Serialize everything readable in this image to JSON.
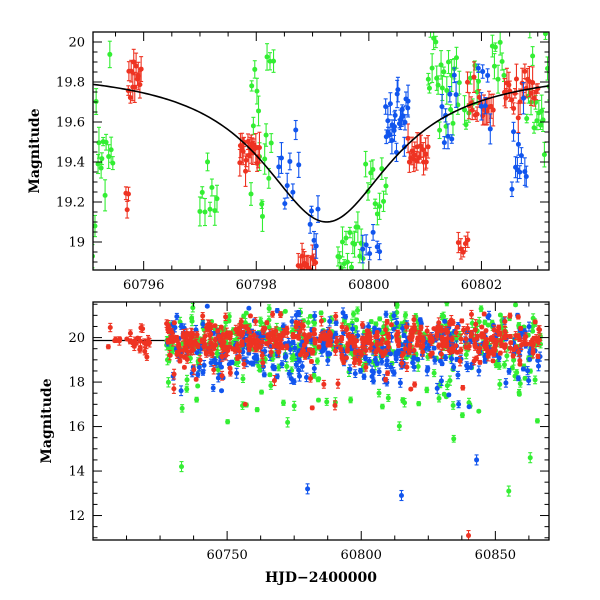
{
  "chart_data": [
    {
      "type": "scatter",
      "panel": "top",
      "title": "",
      "xlabel": "",
      "ylabel": "Magnitude",
      "xlim": [
        60795.1,
        60803.2
      ],
      "ylim": [
        20.05,
        18.86
      ],
      "y_inverted": true,
      "x_ticks": [
        60796,
        60798,
        60800,
        60802
      ],
      "y_ticks": [
        19,
        19.2,
        19.4,
        19.6,
        19.8,
        20
      ],
      "x_tick_labels": [
        "60796",
        "60798",
        "60800",
        "60802"
      ],
      "y_tick_labels": [
        "19",
        "19.2",
        "19.4",
        "19.6",
        "19.8",
        "20"
      ],
      "grid": false,
      "legend": "none",
      "model_curve": {
        "peak_x": 60799.25,
        "peak_mag": 19.1,
        "baseline_mag": 19.87,
        "width_days": 1.6,
        "color": "#000000"
      },
      "series": [
        {
          "color": "#33ee33",
          "segments": [
            {
              "x0": 60795.1,
              "x1": 60795.45,
              "mag_center": 19.55,
              "spread": 0.45,
              "n": 14
            },
            {
              "x0": 60797.0,
              "x1": 60797.3,
              "mag_center": 19.25,
              "spread": 0.22,
              "n": 8
            },
            {
              "x0": 60797.9,
              "x1": 60798.3,
              "mag_center": 19.6,
              "spread": 0.45,
              "n": 16
            },
            {
              "x0": 60799.45,
              "x1": 60799.9,
              "mag_center": 19.0,
              "spread": 0.16,
              "n": 16
            },
            {
              "x0": 60799.95,
              "x1": 60800.3,
              "mag_center": 19.3,
              "spread": 0.16,
              "n": 10
            },
            {
              "x0": 60801.05,
              "x1": 60801.6,
              "mag_center": 19.85,
              "spread": 0.25,
              "n": 22
            },
            {
              "x0": 60801.7,
              "x1": 60801.95,
              "mag_center": 19.75,
              "spread": 0.3,
              "n": 8
            },
            {
              "x0": 60802.15,
              "x1": 60802.4,
              "mag_center": 19.9,
              "spread": 0.15,
              "n": 8
            },
            {
              "x0": 60802.8,
              "x1": 60803.2,
              "mag_center": 19.65,
              "spread": 0.35,
              "n": 16
            }
          ]
        },
        {
          "color": "#ee3322",
          "segments": [
            {
              "x0": 60795.68,
              "x1": 60795.72,
              "mag_center": 19.2,
              "spread": 0.05,
              "n": 3
            },
            {
              "x0": 60795.72,
              "x1": 60795.95,
              "mag_center": 19.78,
              "spread": 0.12,
              "n": 12
            },
            {
              "x0": 60797.7,
              "x1": 60798.05,
              "mag_center": 19.45,
              "spread": 0.1,
              "n": 18
            },
            {
              "x0": 60798.75,
              "x1": 60799.05,
              "mag_center": 18.9,
              "spread": 0.04,
              "n": 12
            },
            {
              "x0": 60800.7,
              "x1": 60801.05,
              "mag_center": 19.45,
              "spread": 0.08,
              "n": 16
            },
            {
              "x0": 60801.6,
              "x1": 60801.75,
              "mag_center": 18.97,
              "spread": 0.06,
              "n": 5
            },
            {
              "x0": 60801.75,
              "x1": 60802.2,
              "mag_center": 19.7,
              "spread": 0.15,
              "n": 16
            },
            {
              "x0": 60802.4,
              "x1": 60803.0,
              "mag_center": 19.75,
              "spread": 0.1,
              "n": 22
            }
          ]
        },
        {
          "color": "#1155ee",
          "segments": [
            {
              "x0": 60798.4,
              "x1": 60798.75,
              "mag_center": 19.35,
              "spread": 0.15,
              "n": 8
            },
            {
              "x0": 60798.95,
              "x1": 60799.1,
              "mag_center": 19.05,
              "spread": 0.12,
              "n": 5
            },
            {
              "x0": 60799.9,
              "x1": 60800.2,
              "mag_center": 18.95,
              "spread": 0.08,
              "n": 6
            },
            {
              "x0": 60800.3,
              "x1": 60800.7,
              "mag_center": 19.65,
              "spread": 0.15,
              "n": 24
            },
            {
              "x0": 60801.3,
              "x1": 60801.55,
              "mag_center": 19.65,
              "spread": 0.15,
              "n": 8
            },
            {
              "x0": 60801.95,
              "x1": 60802.15,
              "mag_center": 19.75,
              "spread": 0.15,
              "n": 6
            },
            {
              "x0": 60802.55,
              "x1": 60802.8,
              "mag_center": 19.4,
              "spread": 0.25,
              "n": 10
            }
          ]
        }
      ]
    },
    {
      "type": "scatter",
      "panel": "bottom",
      "title": "",
      "xlabel": "HJD−2400000",
      "ylabel": "Magnitude",
      "xlim": [
        60700,
        60870
      ],
      "ylim": [
        21.6,
        10.9
      ],
      "y_inverted": true,
      "x_ticks": [
        60750,
        60800,
        60850
      ],
      "y_ticks": [
        12,
        14,
        16,
        18,
        20
      ],
      "x_tick_labels": [
        "60750",
        "60800",
        "60850"
      ],
      "y_tick_labels": [
        "12",
        "14",
        "16",
        "18",
        "20"
      ],
      "grid": false,
      "legend": "none",
      "baseline_mag": 19.87,
      "series": [
        {
          "color": "#ee3322",
          "range": [
            60705,
            60867
          ],
          "base_mag": 19.9,
          "early_x": [
            60705,
            60722
          ],
          "notable": [
            {
              "x": 60840,
              "y": 11.1
            }
          ]
        },
        {
          "color": "#33ee33",
          "range": [
            60727,
            60867
          ],
          "base_mag": 19.9,
          "notable": [
            {
              "x": 60733,
              "y": 14.2
            },
            {
              "x": 60855,
              "y": 13.1
            },
            {
              "x": 60863,
              "y": 14.6
            }
          ]
        },
        {
          "color": "#1155ee",
          "range": [
            60727,
            60867
          ],
          "base_mag": 19.5,
          "notable": [
            {
              "x": 60780,
              "y": 13.2
            },
            {
              "x": 60815,
              "y": 12.9
            },
            {
              "x": 60843,
              "y": 14.5
            }
          ]
        }
      ]
    }
  ]
}
